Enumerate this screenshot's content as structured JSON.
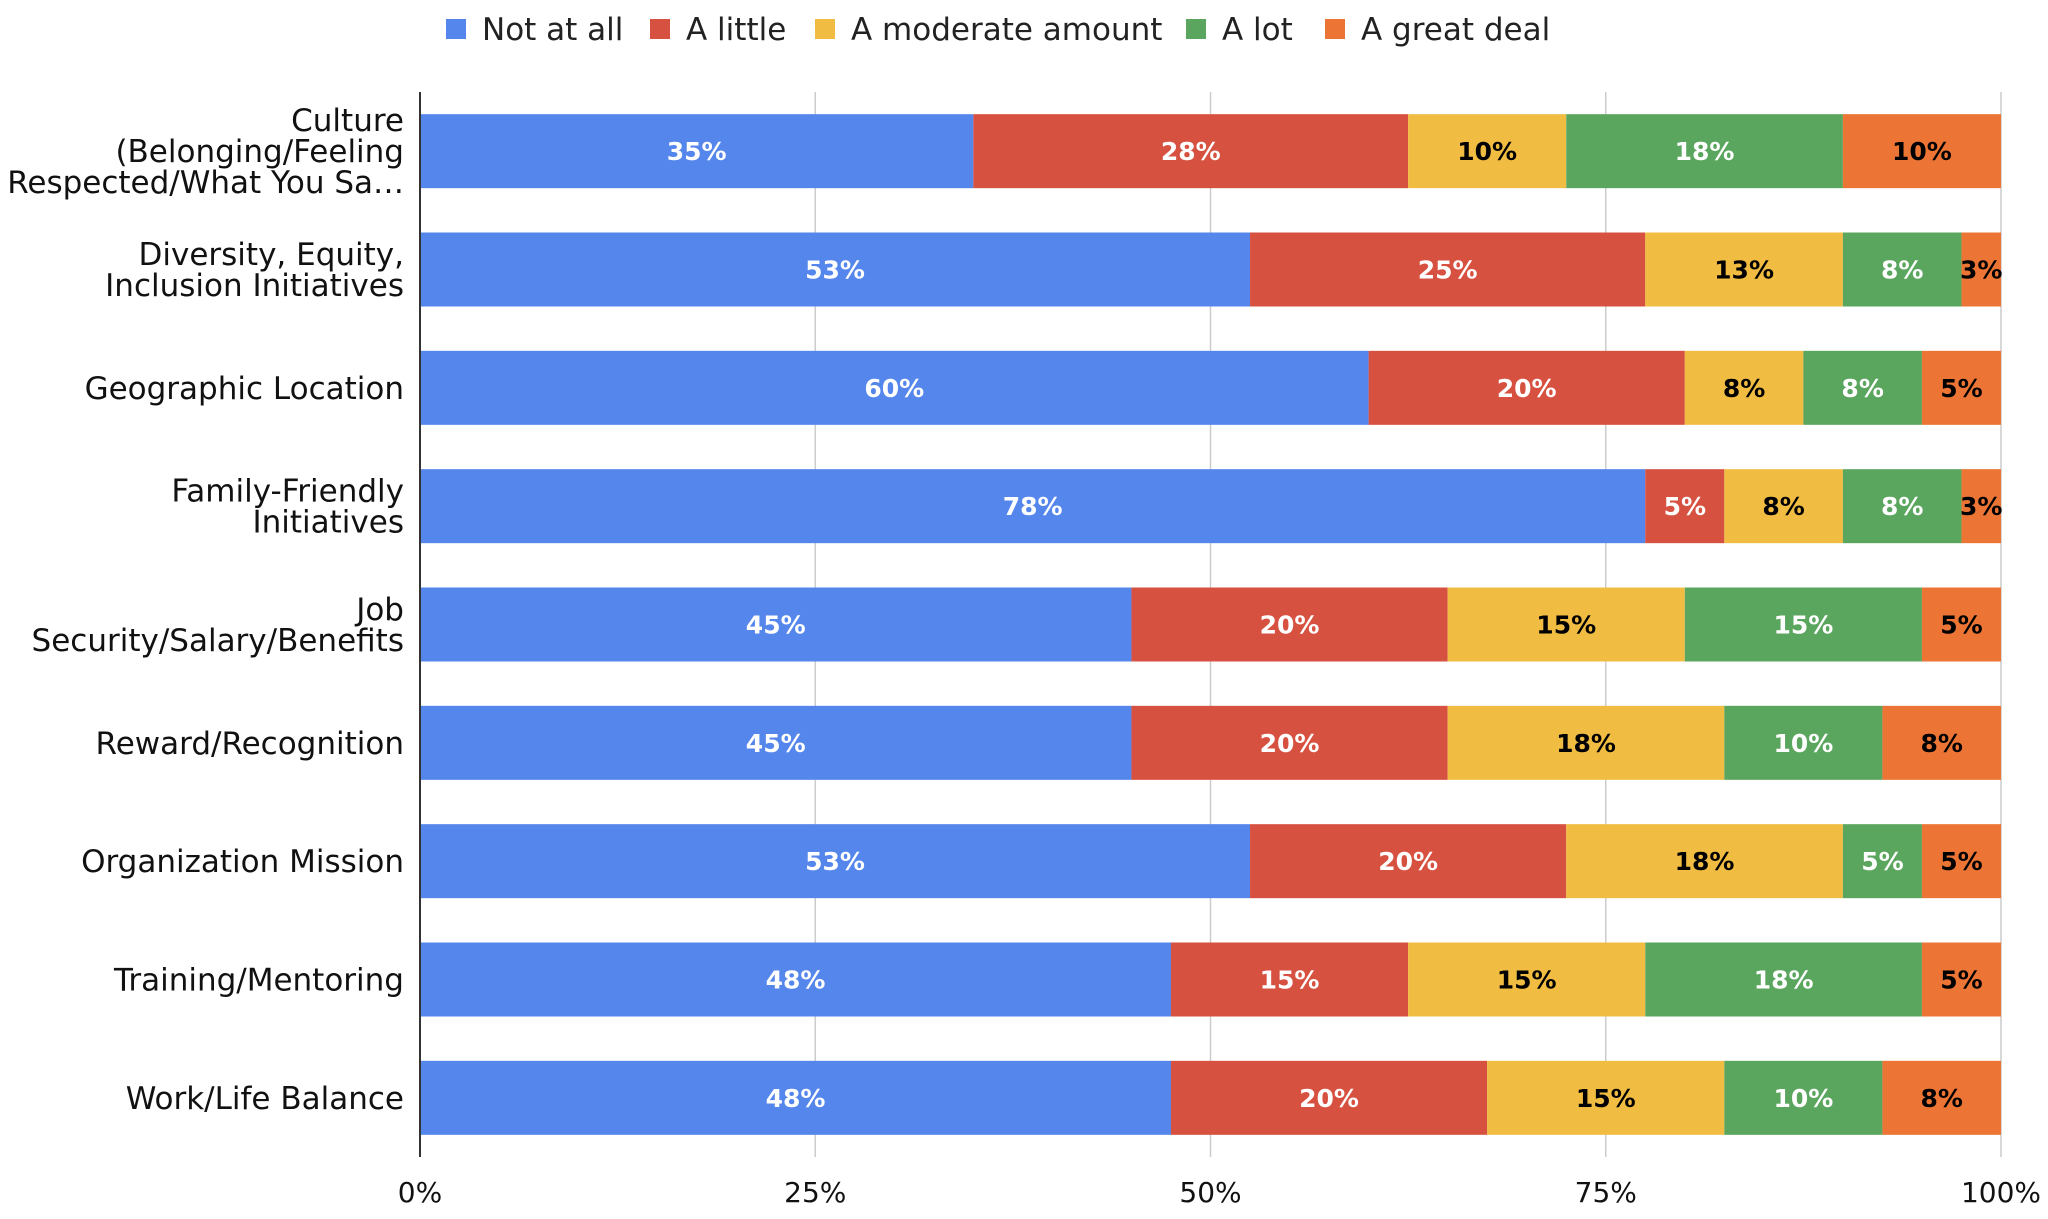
{
  "chart_data": {
    "type": "bar",
    "orientation": "horizontal",
    "stacked": "percent",
    "title": "",
    "xlabel": "",
    "ylabel": "",
    "xlim": [
      0,
      100
    ],
    "x_ticks": [
      "0%",
      "25%",
      "50%",
      "75%",
      "100%"
    ],
    "grid": true,
    "legend_position": "top",
    "categories": [
      "Culture (Belonging/Feeling Respected/What You Sa…",
      "Diversity, Equity, Inclusion Initiatives",
      "Geographic Location",
      "Family-Friendly Initiatives",
      "Job Security/Salary/Benefits",
      "Reward/Recognition",
      "Organization Mission",
      "Training/Mentoring",
      "Work/Life Balance"
    ],
    "category_lines": [
      [
        "Culture",
        "(Belonging/Feeling",
        "Respected/What You Sa…"
      ],
      [
        "Diversity, Equity,",
        "Inclusion Initiatives"
      ],
      [
        "Geographic Location"
      ],
      [
        "Family-Friendly",
        "Initiatives"
      ],
      [
        "Job",
        "Security/Salary/Benefits"
      ],
      [
        "Reward/Recognition"
      ],
      [
        "Organization Mission"
      ],
      [
        "Training/Mentoring"
      ],
      [
        "Work/Life Balance"
      ]
    ],
    "series": [
      {
        "name": "Not at all",
        "color": "#5486ec",
        "label_color": "#ffffff",
        "values": [
          35,
          52.5,
          60,
          77.5,
          45,
          45,
          52.5,
          47.5,
          47.5
        ],
        "labels": [
          "35%",
          "53%",
          "60%",
          "78%",
          "45%",
          "45%",
          "53%",
          "48%",
          "48%"
        ]
      },
      {
        "name": "A little",
        "color": "#d75140",
        "label_color": "#ffffff",
        "values": [
          27.5,
          25,
          20,
          5,
          20,
          20,
          20,
          15,
          20
        ],
        "labels": [
          "28%",
          "25%",
          "20%",
          "5%",
          "20%",
          "20%",
          "20%",
          "15%",
          "20%"
        ]
      },
      {
        "name": "A moderate amount",
        "color": "#f1bc42",
        "label_color": "#000000",
        "values": [
          10,
          12.5,
          7.5,
          7.5,
          15,
          17.5,
          17.5,
          15,
          15
        ],
        "labels": [
          "10%",
          "13%",
          "8%",
          "8%",
          "15%",
          "18%",
          "18%",
          "15%",
          "15%"
        ]
      },
      {
        "name": "A lot",
        "color": "#5ba65e",
        "label_color": "#ffffff",
        "values": [
          17.5,
          7.5,
          7.5,
          7.5,
          15,
          10,
          5,
          17.5,
          10
        ],
        "labels": [
          "18%",
          "8%",
          "8%",
          "8%",
          "15%",
          "10%",
          "5%",
          "18%",
          "10%"
        ]
      },
      {
        "name": "A great deal",
        "color": "#ec7535",
        "label_color": "#000000",
        "values": [
          10,
          2.5,
          5,
          2.5,
          5,
          7.5,
          5,
          5,
          7.5
        ],
        "labels": [
          "10%",
          "3%",
          "5%",
          "3%",
          "5%",
          "8%",
          "5%",
          "5%",
          "8%"
        ]
      }
    ]
  }
}
